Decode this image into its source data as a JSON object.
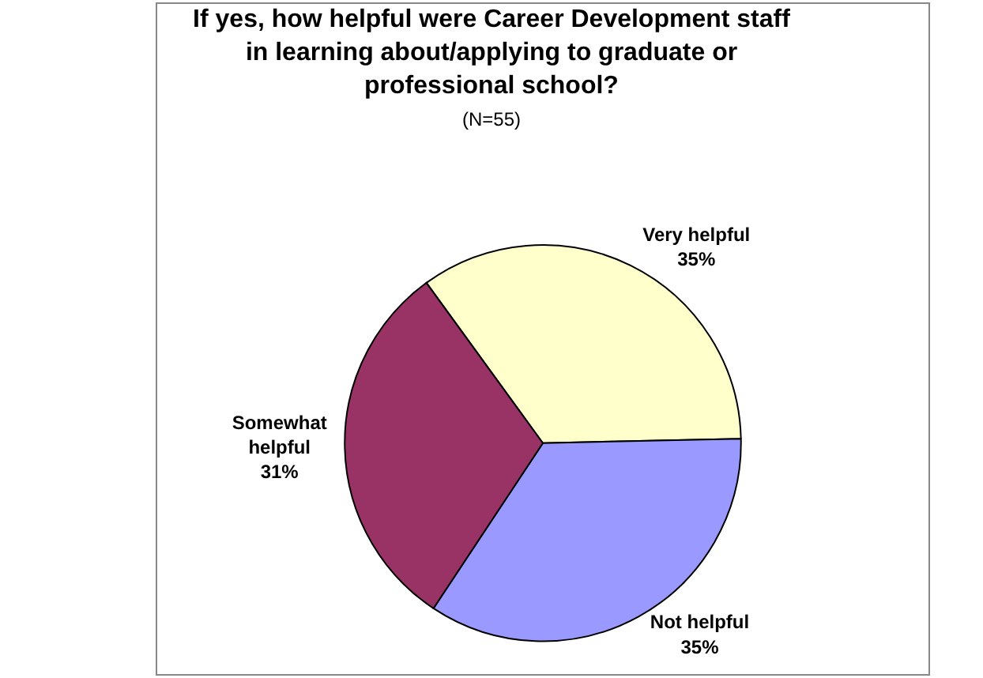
{
  "chart_data": {
    "type": "pie",
    "title": "If yes, how helpful were Career Development staff in learning about/applying to graduate or professional school?",
    "subtitle": "(N=55)",
    "categories": [
      "Very helpful",
      "Not helpful",
      "Somewhat helpful"
    ],
    "values": [
      35,
      35,
      31
    ],
    "colors": [
      "#ffffcc",
      "#9999ff",
      "#993366"
    ],
    "value_labels": [
      "35%",
      "35%",
      "31%"
    ],
    "legend": false
  }
}
